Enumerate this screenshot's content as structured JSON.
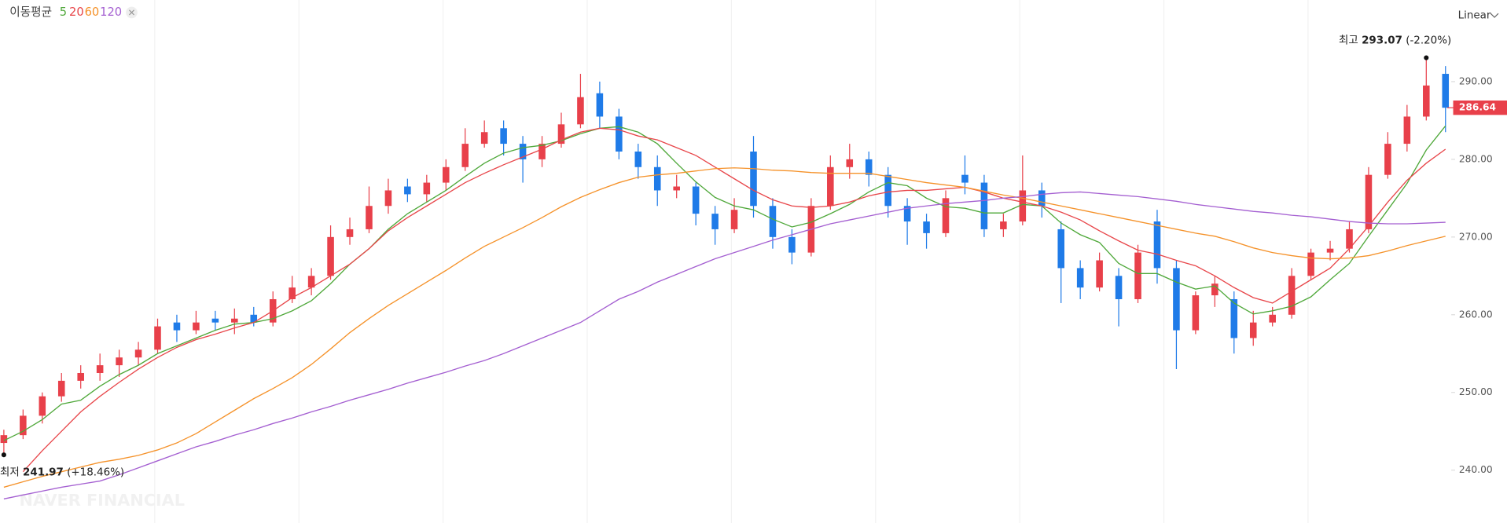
{
  "chart_data": {
    "type": "candlestick",
    "legend_title": "이동평균",
    "scale_label": "Linear",
    "watermark": "NAVER FINANCIAL",
    "up_color": "#e8404a",
    "down_color": "#1f7be8",
    "ylim": [
      233.2,
      300.5
    ],
    "yticks": [
      {
        "value": 240,
        "label": "240.00"
      },
      {
        "value": 250,
        "label": "250.00"
      },
      {
        "value": 260,
        "label": "260.00"
      },
      {
        "value": 270,
        "label": "270.00"
      },
      {
        "value": 280,
        "label": "280.00"
      },
      {
        "value": 290,
        "label": "290.00"
      }
    ],
    "last_price": 286.64,
    "last_price_color": "#e8404a",
    "high": {
      "prefix": "최고",
      "value": 293.07,
      "change": "(-2.20%)"
    },
    "low": {
      "prefix": "최저",
      "value": 241.97,
      "change": "(+18.46%)"
    },
    "ohlc": [
      [
        243.5,
        245.2,
        241.97,
        244.5
      ],
      [
        244.5,
        247.8,
        244,
        247
      ],
      [
        247,
        250,
        246,
        249.5
      ],
      [
        249.5,
        252.5,
        248.8,
        251.5
      ],
      [
        251.5,
        253.5,
        250.5,
        252.5
      ],
      [
        252.5,
        255,
        251.5,
        253.5
      ],
      [
        253.5,
        255.5,
        252,
        254.5
      ],
      [
        254.5,
        256.5,
        253.5,
        255.5
      ],
      [
        255.5,
        259.5,
        255,
        258.5
      ],
      [
        259,
        260,
        256.5,
        258
      ],
      [
        258,
        260.5,
        257.5,
        259
      ],
      [
        259.5,
        260.5,
        258,
        259
      ],
      [
        259,
        260.8,
        257.5,
        259.5
      ],
      [
        260,
        261,
        258.5,
        259
      ],
      [
        259,
        263,
        258.5,
        262
      ],
      [
        262,
        265,
        261.5,
        263.5
      ],
      [
        263.5,
        266,
        262.5,
        265
      ],
      [
        265,
        271.5,
        264.5,
        270
      ],
      [
        270,
        272.5,
        269,
        271
      ],
      [
        271,
        276.5,
        270.5,
        274
      ],
      [
        274,
        277.5,
        273,
        276
      ],
      [
        276.5,
        277.5,
        274.5,
        275.5
      ],
      [
        275.5,
        278,
        274.5,
        277
      ],
      [
        277,
        280,
        276,
        279
      ],
      [
        279,
        284,
        278.5,
        282
      ],
      [
        282,
        285,
        281.5,
        283.5
      ],
      [
        284,
        285,
        280.5,
        282
      ],
      [
        282,
        283,
        277,
        280
      ],
      [
        280,
        283,
        279,
        282
      ],
      [
        282,
        286,
        281.5,
        284.5
      ],
      [
        284.5,
        291,
        284,
        288
      ],
      [
        288.5,
        290,
        284,
        285.5
      ],
      [
        285.5,
        286.5,
        280,
        281
      ],
      [
        281,
        282,
        277.5,
        279
      ],
      [
        279,
        280.5,
        274,
        276
      ],
      [
        276,
        278,
        275,
        276.5
      ],
      [
        276.5,
        277,
        271.5,
        273
      ],
      [
        273,
        274,
        269,
        271
      ],
      [
        271,
        275,
        270.5,
        273.5
      ],
      [
        281,
        283,
        272.5,
        274
      ],
      [
        274,
        275,
        268.5,
        270
      ],
      [
        270,
        271,
        266.5,
        268
      ],
      [
        268,
        275,
        267.5,
        274
      ],
      [
        274,
        280.5,
        273.5,
        279
      ],
      [
        279,
        282,
        277.5,
        280
      ],
      [
        280,
        281,
        276.5,
        278
      ],
      [
        278,
        279,
        272.5,
        274
      ],
      [
        274,
        275,
        269,
        272
      ],
      [
        272,
        273,
        268.5,
        270.5
      ],
      [
        270.5,
        276,
        270,
        275
      ],
      [
        278,
        280.5,
        275.5,
        277
      ],
      [
        277,
        278,
        270,
        271
      ],
      [
        271,
        273,
        270,
        272
      ],
      [
        272,
        280.5,
        271.5,
        276
      ],
      [
        276,
        277,
        272.5,
        274
      ],
      [
        271,
        272,
        261.5,
        266
      ],
      [
        266,
        267,
        262,
        263.5
      ],
      [
        263.5,
        268,
        263,
        267
      ],
      [
        265,
        266,
        258.5,
        262
      ],
      [
        262,
        269,
        261.5,
        268
      ],
      [
        272,
        273.5,
        264,
        266
      ],
      [
        266,
        267,
        253,
        258
      ],
      [
        258,
        263,
        257.5,
        262.5
      ],
      [
        262.5,
        265,
        261,
        264
      ],
      [
        262,
        263,
        255,
        257
      ],
      [
        257,
        260.5,
        256,
        259
      ],
      [
        259,
        261,
        258.5,
        260
      ],
      [
        260,
        266,
        259.5,
        265
      ],
      [
        265,
        268.5,
        264.5,
        268
      ],
      [
        268,
        269.5,
        267,
        268.5
      ],
      [
        268.5,
        272,
        268,
        271
      ],
      [
        271,
        279,
        270.5,
        278
      ],
      [
        278,
        283.5,
        277.5,
        282
      ],
      [
        282,
        287,
        281,
        285.5
      ],
      [
        285.5,
        293.07,
        285,
        289.5
      ],
      [
        291,
        292,
        283.5,
        286.64
      ]
    ],
    "series": [
      {
        "name": "5",
        "color": "#4fa83a",
        "values": [
          243.8,
          245,
          246.5,
          248.5,
          249,
          250.8,
          252.3,
          253.5,
          255,
          256,
          257,
          258,
          258.8,
          259,
          259.5,
          260.5,
          261.8,
          264,
          266.5,
          268.5,
          271,
          273,
          274.5,
          276,
          277.8,
          279.5,
          280.8,
          281.5,
          281.8,
          282.4,
          283.3,
          284,
          284.2,
          283.5,
          282,
          279.5,
          277.1,
          275.1,
          274,
          273.5,
          272.3,
          271.3,
          271.9,
          273,
          274.2,
          275.8,
          277,
          276.6,
          275,
          273.9,
          273.7,
          273.1,
          273.1,
          274.2,
          274,
          271.8,
          270.3,
          269.3,
          266.6,
          265.3,
          265.3,
          264.2,
          263.3,
          263.7,
          261.5,
          260.1,
          260.5,
          261.1,
          262.3,
          264.5,
          266.6,
          270.1,
          273.5,
          276.9,
          281.2,
          284.3
        ]
      },
      {
        "name": "20",
        "color": "#e8464a",
        "values": [
          null,
          239.8,
          242.5,
          245,
          247.5,
          249.5,
          251.3,
          253,
          254.5,
          255.8,
          256.8,
          257.5,
          258.3,
          259,
          260.5,
          262.2,
          263.5,
          265,
          266.5,
          268.5,
          270.8,
          272.5,
          274,
          275.5,
          277,
          278.2,
          279.3,
          280.3,
          281.3,
          282.5,
          283.5,
          284,
          283.8,
          283,
          282.5,
          281.5,
          280.5,
          279,
          277.5,
          276,
          274.8,
          274,
          273.8,
          274,
          274.5,
          275.3,
          275.8,
          276,
          276,
          276.2,
          276.4,
          275.8,
          275,
          274.5,
          274,
          273.2,
          272.2,
          270.8,
          269.5,
          268.3,
          267.8,
          267,
          266.3,
          265,
          263.5,
          262.2,
          261.5,
          263,
          264.5,
          266,
          268.5,
          271.4,
          274.5,
          277.3,
          279.5,
          281.3
        ]
      },
      {
        "name": "60",
        "color": "#f5922a",
        "values": [
          237.8,
          238.5,
          239.2,
          239.8,
          240.4,
          241,
          241.4,
          241.9,
          242.6,
          243.5,
          244.7,
          246.2,
          247.7,
          249.2,
          250.5,
          251.9,
          253.6,
          255.6,
          257.7,
          259.5,
          261.2,
          262.7,
          264.2,
          265.7,
          267.3,
          268.8,
          270,
          271.2,
          272.5,
          273.9,
          275.1,
          276.1,
          277,
          277.7,
          278,
          278.2,
          278.5,
          278.8,
          278.9,
          278.8,
          278.6,
          278.5,
          278.3,
          278.2,
          278.2,
          278.2,
          277.8,
          277.4,
          277,
          276.7,
          276.4,
          275.9,
          275.4,
          275,
          274.5,
          274,
          273.5,
          273,
          272.5,
          272,
          271.5,
          271,
          270.5,
          270.1,
          269.4,
          268.6,
          268,
          267.6,
          267.3,
          267.2,
          267.3,
          267.6,
          268.2,
          268.9,
          269.5,
          270.1
        ]
      },
      {
        "name": "120",
        "color": "#a45fd1",
        "values": [
          236.3,
          236.8,
          237.3,
          237.8,
          238.2,
          238.6,
          239.4,
          240.3,
          241.2,
          242.1,
          243,
          243.7,
          244.5,
          245.2,
          246,
          246.7,
          247.5,
          248.2,
          249,
          249.7,
          250.4,
          251.2,
          251.9,
          252.6,
          253.4,
          254.1,
          255,
          256,
          257,
          258,
          259,
          260.5,
          262,
          263,
          264.2,
          265.2,
          266.2,
          267.2,
          268,
          268.8,
          269.6,
          270.3,
          271,
          271.7,
          272.2,
          272.7,
          273.2,
          273.7,
          274,
          274.3,
          274.5,
          274.7,
          275,
          275.2,
          275.5,
          275.7,
          275.8,
          275.6,
          275.4,
          275.2,
          274.9,
          274.6,
          274.2,
          273.9,
          273.6,
          273.3,
          273.1,
          272.8,
          272.6,
          272.3,
          272,
          271.8,
          271.7,
          271.7,
          271.8,
          271.9
        ]
      }
    ]
  }
}
